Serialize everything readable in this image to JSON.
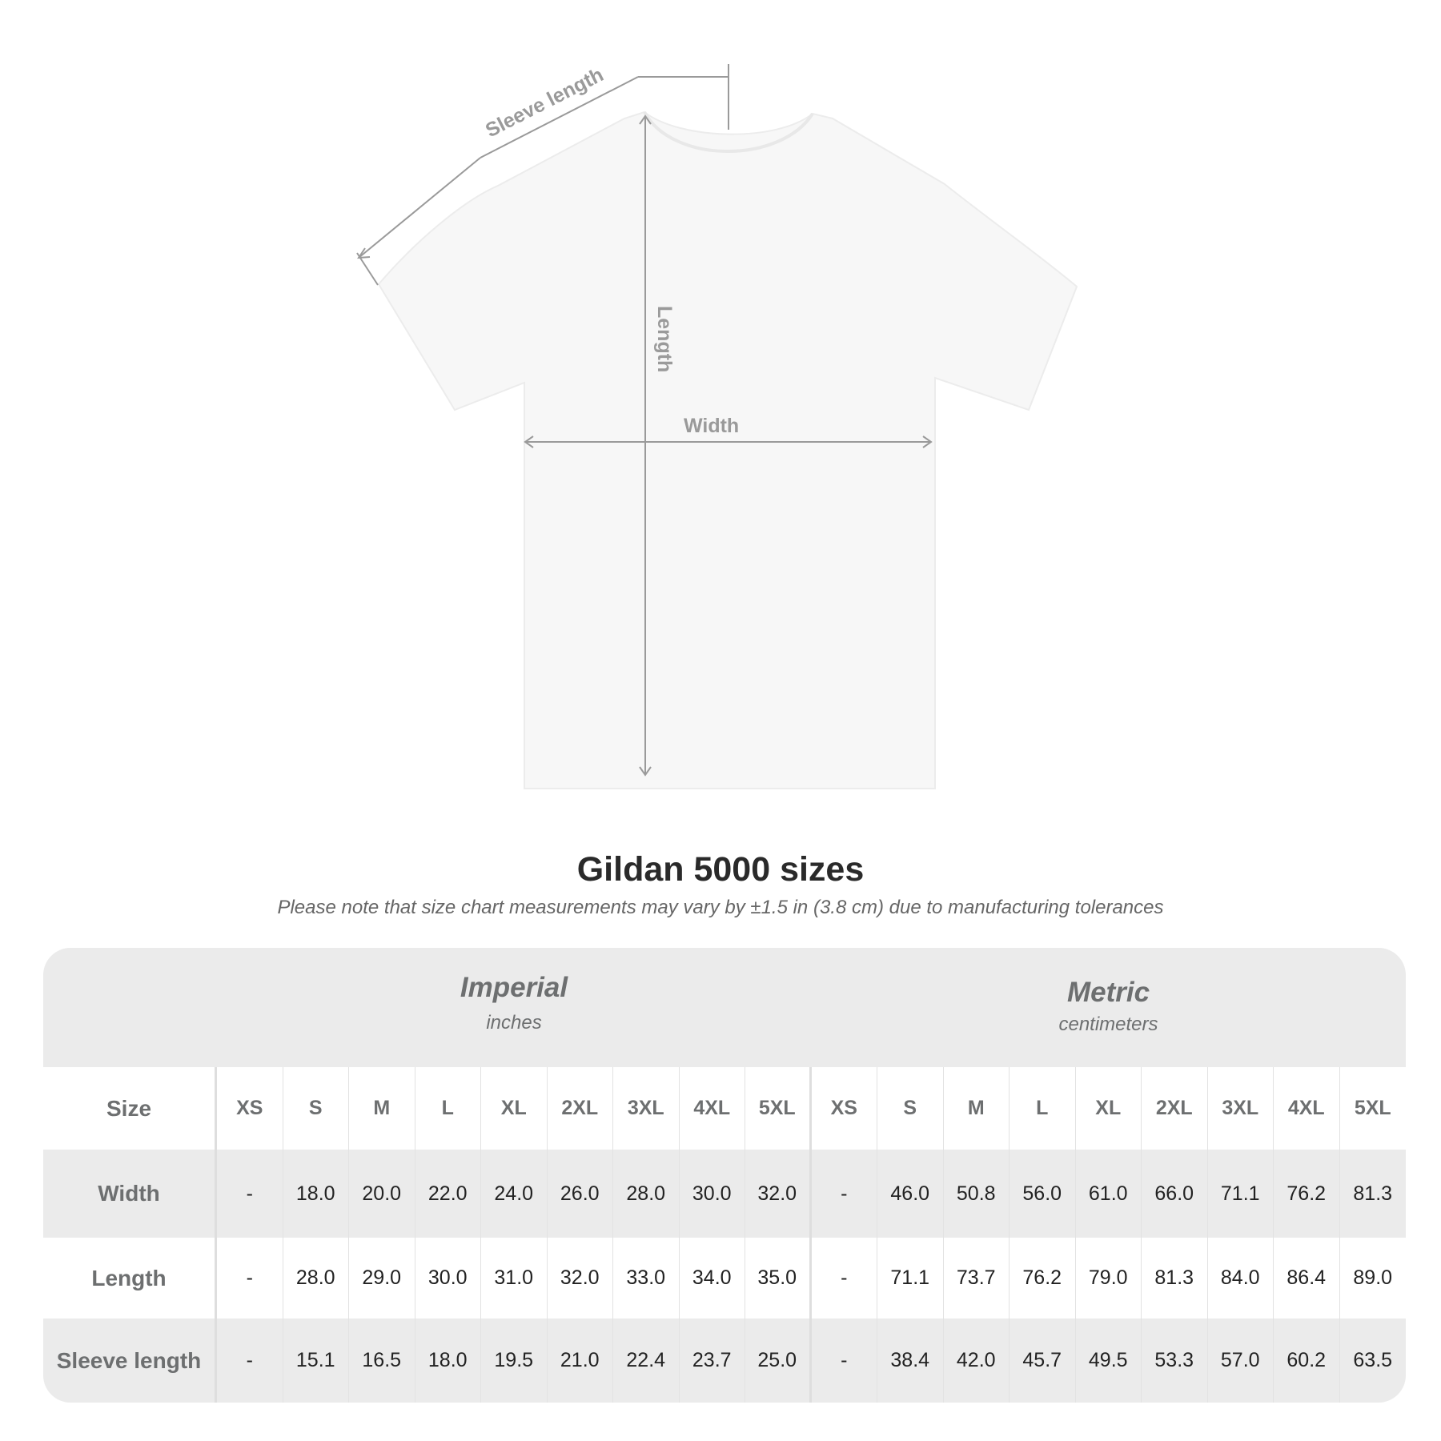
{
  "diagram": {
    "labels": {
      "sleeve": "Sleeve length",
      "length": "Length",
      "width": "Width"
    },
    "colors": {
      "shirt": "#f7f7f7",
      "measure_line": "#9a9a9a"
    }
  },
  "title": "Gildan 5000 sizes",
  "subtitle": "Please note that size chart measurements may vary by ±1.5 in (3.8 cm) due to manufacturing tolerances",
  "table": {
    "imperial": {
      "name": "Imperial",
      "unit": "inches"
    },
    "metric": {
      "name": "Metric",
      "unit": "centimeters"
    },
    "size_label": "Size",
    "sizes": [
      "XS",
      "S",
      "M",
      "L",
      "XL",
      "2XL",
      "3XL",
      "4XL",
      "5XL"
    ],
    "rows": [
      {
        "label": "Width",
        "imperial": [
          "-",
          "18.0",
          "20.0",
          "22.0",
          "24.0",
          "26.0",
          "28.0",
          "30.0",
          "32.0"
        ],
        "metric": [
          "-",
          "46.0",
          "50.8",
          "56.0",
          "61.0",
          "66.0",
          "71.1",
          "76.2",
          "81.3"
        ]
      },
      {
        "label": "Length",
        "imperial": [
          "-",
          "28.0",
          "29.0",
          "30.0",
          "31.0",
          "32.0",
          "33.0",
          "34.0",
          "35.0"
        ],
        "metric": [
          "-",
          "71.1",
          "73.7",
          "76.2",
          "79.0",
          "81.3",
          "84.0",
          "86.4",
          "89.0"
        ]
      },
      {
        "label": "Sleeve length",
        "imperial": [
          "-",
          "15.1",
          "16.5",
          "18.0",
          "19.5",
          "21.0",
          "22.4",
          "23.7",
          "25.0"
        ],
        "metric": [
          "-",
          "38.4",
          "42.0",
          "45.7",
          "49.5",
          "53.3",
          "57.0",
          "60.2",
          "63.5"
        ]
      }
    ],
    "colors": {
      "band": "#ebebeb",
      "header_text": "#6d6f70"
    }
  }
}
